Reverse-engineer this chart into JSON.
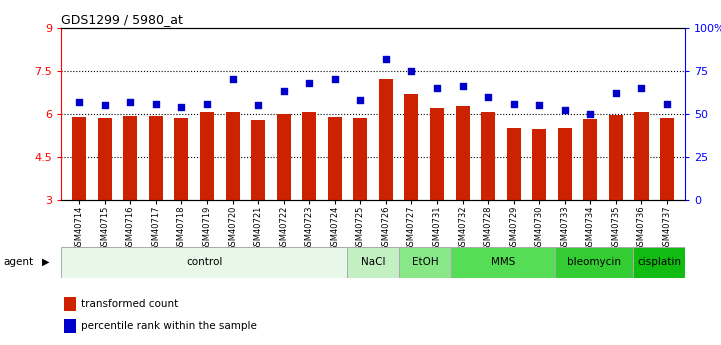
{
  "title": "GDS1299 / 5980_at",
  "samples": [
    "GSM40714",
    "GSM40715",
    "GSM40716",
    "GSM40717",
    "GSM40718",
    "GSM40719",
    "GSM40720",
    "GSM40721",
    "GSM40722",
    "GSM40723",
    "GSM40724",
    "GSM40725",
    "GSM40726",
    "GSM40727",
    "GSM40731",
    "GSM40732",
    "GSM40728",
    "GSM40729",
    "GSM40730",
    "GSM40733",
    "GSM40734",
    "GSM40735",
    "GSM40736",
    "GSM40737"
  ],
  "bar_values": [
    5.9,
    5.85,
    5.92,
    5.92,
    5.85,
    6.08,
    6.08,
    5.78,
    5.98,
    6.08,
    5.88,
    5.85,
    7.22,
    6.68,
    6.22,
    6.28,
    6.08,
    5.5,
    5.48,
    5.5,
    5.82,
    5.95,
    6.08,
    5.85
  ],
  "dot_values": [
    57,
    55,
    57,
    56,
    54,
    56,
    70,
    55,
    63,
    68,
    70,
    58,
    82,
    75,
    65,
    66,
    60,
    56,
    55,
    52,
    50,
    62,
    65,
    56
  ],
  "agents": [
    {
      "label": "control",
      "start": 0,
      "end": 11,
      "color": "#e8f8e8"
    },
    {
      "label": "NaCl",
      "start": 11,
      "end": 13,
      "color": "#c2f0c2"
    },
    {
      "label": "EtOH",
      "start": 13,
      "end": 15,
      "color": "#88e888"
    },
    {
      "label": "MMS",
      "start": 15,
      "end": 19,
      "color": "#55dd55"
    },
    {
      "label": "bleomycin",
      "start": 19,
      "end": 22,
      "color": "#33cc33"
    },
    {
      "label": "cisplatin",
      "start": 22,
      "end": 24,
      "color": "#11bb11"
    }
  ],
  "bar_color": "#cc2200",
  "dot_color": "#0000cc",
  "ylim_left": [
    3,
    9
  ],
  "ylim_right": [
    0,
    100
  ],
  "yticks_left": [
    3,
    4.5,
    6,
    7.5,
    9
  ],
  "ytick_labels_left": [
    "3",
    "4.5",
    "6",
    "7.5",
    "9"
  ],
  "yticks_right": [
    0,
    25,
    50,
    75,
    100
  ],
  "ytick_labels_right": [
    "0",
    "25",
    "50",
    "75",
    "100%"
  ],
  "hlines": [
    4.5,
    6.0,
    7.5
  ],
  "bar_width": 0.55,
  "legend_items": [
    {
      "label": "transformed count",
      "color": "#cc2200"
    },
    {
      "label": "percentile rank within the sample",
      "color": "#0000cc"
    }
  ]
}
